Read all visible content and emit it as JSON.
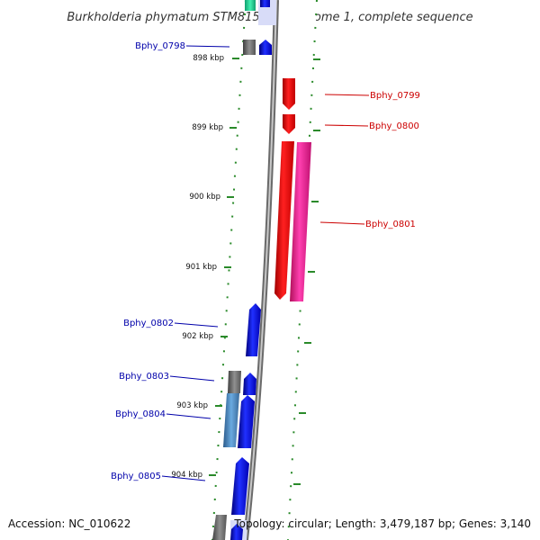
{
  "title": "Burkholderia phymatum STM815 chromosome 1, complete sequence",
  "accession_text": "Accession: NC_010622",
  "topology_text": "Topology: circular; Length: 3,479,187 bp; Genes: 3,140",
  "colors": {
    "forward_label": "#0000aa",
    "reverse_label": "#cc0000",
    "backbone": "#8a8a8a",
    "scale_tick": "#2a8a2a"
  },
  "scale": {
    "labels": [
      "898 kbp",
      "899 kbp",
      "900 kbp",
      "901 kbp",
      "902 kbp",
      "903 kbp",
      "904 kbp"
    ]
  },
  "genes": [
    {
      "id": "Bphy_0798",
      "strand": "forward"
    },
    {
      "id": "Bphy_0799",
      "strand": "reverse"
    },
    {
      "id": "Bphy_0800",
      "strand": "reverse"
    },
    {
      "id": "Bphy_0801",
      "strand": "reverse"
    },
    {
      "id": "Bphy_0802",
      "strand": "forward"
    },
    {
      "id": "Bphy_0803",
      "strand": "forward"
    },
    {
      "id": "Bphy_0804",
      "strand": "forward"
    },
    {
      "id": "Bphy_0805",
      "strand": "forward"
    }
  ]
}
